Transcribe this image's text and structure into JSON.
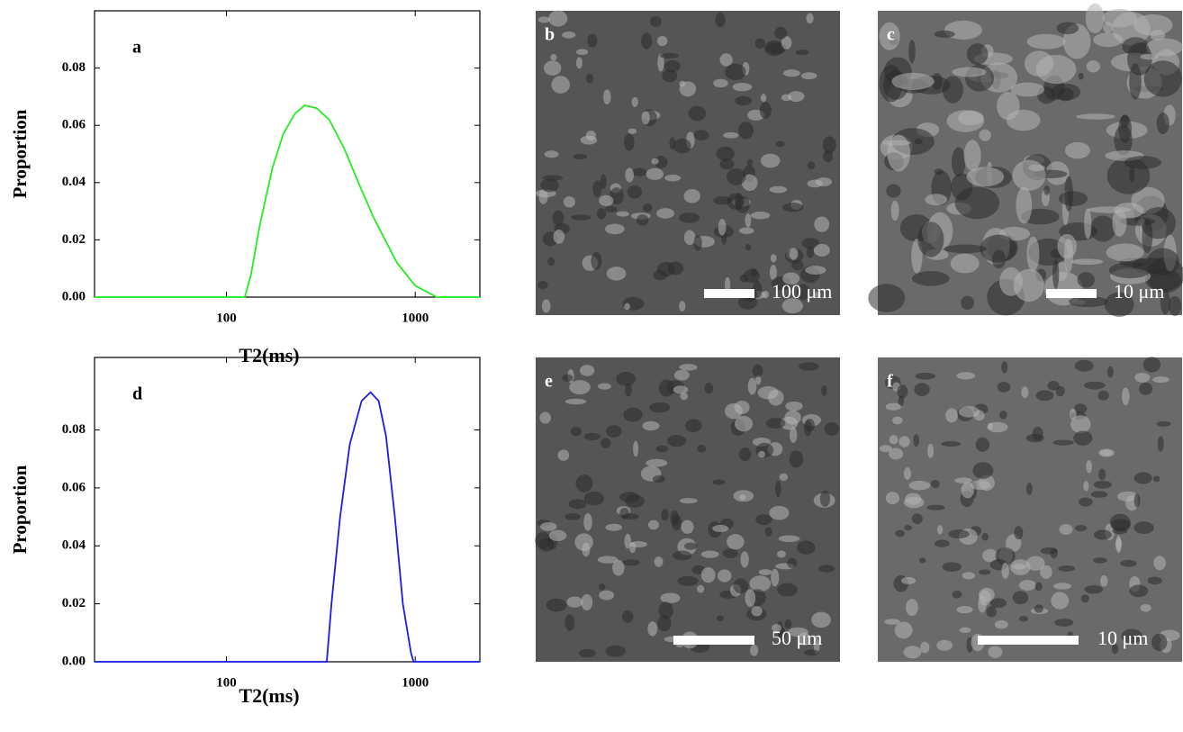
{
  "chart_data": [
    {
      "type": "line",
      "panel_label": "a",
      "ylabel": "Proportion",
      "xlabel": "T2(ms)",
      "xscale": "log",
      "grid": false,
      "xlim": [
        20,
        2200
      ],
      "xticks": [
        100,
        1000
      ],
      "ylim": [
        0,
        0.1
      ],
      "yticks": [
        {
          "value": 0,
          "label": "0.00"
        },
        {
          "value": 0.02,
          "label": "0.02"
        },
        {
          "value": 0.04,
          "label": "0.04"
        },
        {
          "value": 0.06,
          "label": "0.06"
        },
        {
          "value": 0.08,
          "label": "0.08"
        }
      ],
      "x": [
        20,
        125,
        135,
        150,
        175,
        200,
        230,
        260,
        300,
        350,
        420,
        500,
        600,
        800,
        1000,
        1300,
        2200
      ],
      "series": [
        {
          "color": "#22ee22",
          "values": [
            0,
            0,
            0.008,
            0.025,
            0.045,
            0.057,
            0.064,
            0.067,
            0.066,
            0.062,
            0.052,
            0.04,
            0.028,
            0.012,
            0.004,
            0,
            0
          ]
        }
      ]
    },
    {
      "type": "line",
      "panel_label": "d",
      "ylabel": "Proportion",
      "xlabel": "T2(ms)",
      "xscale": "log",
      "grid": false,
      "xlim": [
        20,
        2200
      ],
      "xticks": [
        100,
        1000
      ],
      "ylim": [
        0,
        0.105
      ],
      "yticks": [
        {
          "value": 0,
          "label": "0.00"
        },
        {
          "value": 0.02,
          "label": "0.02"
        },
        {
          "value": 0.04,
          "label": "0.04"
        },
        {
          "value": 0.06,
          "label": "0.06"
        },
        {
          "value": 0.08,
          "label": "0.08"
        }
      ],
      "x": [
        20,
        340,
        360,
        400,
        450,
        520,
        580,
        640,
        700,
        780,
        860,
        950,
        980,
        2200
      ],
      "series": [
        {
          "color": "#1a1aee",
          "values": [
            0,
            0,
            0.02,
            0.05,
            0.075,
            0.09,
            0.093,
            0.09,
            0.078,
            0.05,
            0.02,
            0.003,
            0,
            0
          ]
        }
      ]
    }
  ],
  "images": [
    {
      "panel_label": "b",
      "scale": "100 μm"
    },
    {
      "panel_label": "c",
      "scale": "10 μm"
    },
    {
      "panel_label": "e",
      "scale": "50 μm"
    },
    {
      "panel_label": "f",
      "scale": "10 μm"
    }
  ]
}
